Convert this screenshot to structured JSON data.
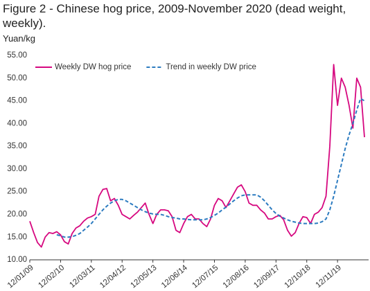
{
  "chart_data": {
    "type": "line",
    "title": "Figure 2 - Chinese hog price, 2009-November 2020 (dead weight, weekly).",
    "y_label": "Yuan/kg",
    "categories": [
      "12/01/09",
      null,
      null,
      null,
      null,
      null,
      null,
      null,
      "12/02/10",
      null,
      null,
      null,
      null,
      null,
      null,
      null,
      "12/03/11",
      null,
      null,
      null,
      null,
      null,
      null,
      null,
      "12/04/12",
      null,
      null,
      null,
      null,
      null,
      null,
      null,
      "12/05/13",
      null,
      null,
      null,
      null,
      null,
      null,
      null,
      "12/06/14",
      null,
      null,
      null,
      null,
      null,
      null,
      null,
      "12/07/15",
      null,
      null,
      null,
      null,
      null,
      null,
      null,
      "12/08/16",
      null,
      null,
      null,
      null,
      null,
      null,
      null,
      "12/09/17",
      null,
      null,
      null,
      null,
      null,
      null,
      null,
      "12/10/18",
      null,
      null,
      null,
      null,
      null,
      null,
      null,
      "12/11/19",
      null,
      null,
      null,
      null,
      null,
      null,
      null
    ],
    "series": [
      {
        "name": "Weekly DW hog price",
        "color": "#d6077f",
        "dashed": false,
        "values": [
          18.5,
          16,
          13.8,
          12.8,
          15,
          16,
          15.8,
          16.2,
          15.5,
          14,
          13.5,
          15.8,
          17,
          17.5,
          18.5,
          19.2,
          19.5,
          20,
          24,
          25.5,
          25.7,
          23,
          23.5,
          22,
          20,
          19.5,
          19,
          19.8,
          20.5,
          21.5,
          22.5,
          20,
          18,
          20,
          21,
          21,
          20.8,
          19.5,
          16.5,
          16,
          18,
          19.5,
          20,
          19,
          19,
          18,
          17.3,
          19,
          22,
          23.5,
          23,
          21.5,
          23,
          24.5,
          26,
          26.5,
          25,
          22.5,
          22,
          22,
          21,
          20.3,
          19,
          19,
          19.5,
          19.8,
          18.8,
          16.5,
          15.2,
          16,
          18,
          19.5,
          19.3,
          18,
          20,
          20.5,
          21.5,
          24,
          35,
          53,
          44,
          50,
          48,
          44,
          39,
          50,
          48,
          37
        ]
      },
      {
        "name": "Trend in weekly DW price",
        "color": "#2b7bc0",
        "dashed": true,
        "values": [
          null,
          null,
          null,
          null,
          null,
          null,
          null,
          15.5,
          15.3,
          15,
          15,
          15.1,
          15.4,
          15.8,
          16.5,
          17.2,
          18,
          19,
          20,
          21,
          21.8,
          22.5,
          23,
          23.3,
          23.3,
          23,
          22.5,
          22,
          21.5,
          21,
          20.6,
          20.3,
          20.1,
          20,
          20,
          19.8,
          19.5,
          19.3,
          19.2,
          19,
          19,
          18.9,
          18.8,
          18.8,
          18.8,
          18.8,
          19,
          19.3,
          19.8,
          20.3,
          21,
          21.6,
          22.3,
          23,
          23.6,
          24.1,
          24.3,
          24.3,
          24.3,
          24.3,
          23.8,
          23,
          22,
          21,
          20.2,
          19.6,
          19.2,
          18.8,
          18.5,
          18.3,
          18.1,
          18,
          18,
          18,
          18,
          18.1,
          18.4,
          19,
          21,
          24,
          27.5,
          31,
          34.5,
          37.5,
          40,
          43,
          45.5,
          45
        ]
      }
    ],
    "ylim": [
      10,
      55
    ],
    "yticks": [
      {
        "value": 10,
        "label": "10.00"
      },
      {
        "value": 15,
        "label": "15.00"
      },
      {
        "value": 20,
        "label": "20.00"
      },
      {
        "value": 25,
        "label": "25.00"
      },
      {
        "value": 30,
        "label": "30.00"
      },
      {
        "value": 35,
        "label": "35.00"
      },
      {
        "value": 40,
        "label": "40.00"
      },
      {
        "value": 45,
        "label": "45.00"
      },
      {
        "value": 50,
        "label": "50.00"
      },
      {
        "value": 55,
        "label": "55.00"
      }
    ],
    "grid": false,
    "legend": "top-left"
  }
}
